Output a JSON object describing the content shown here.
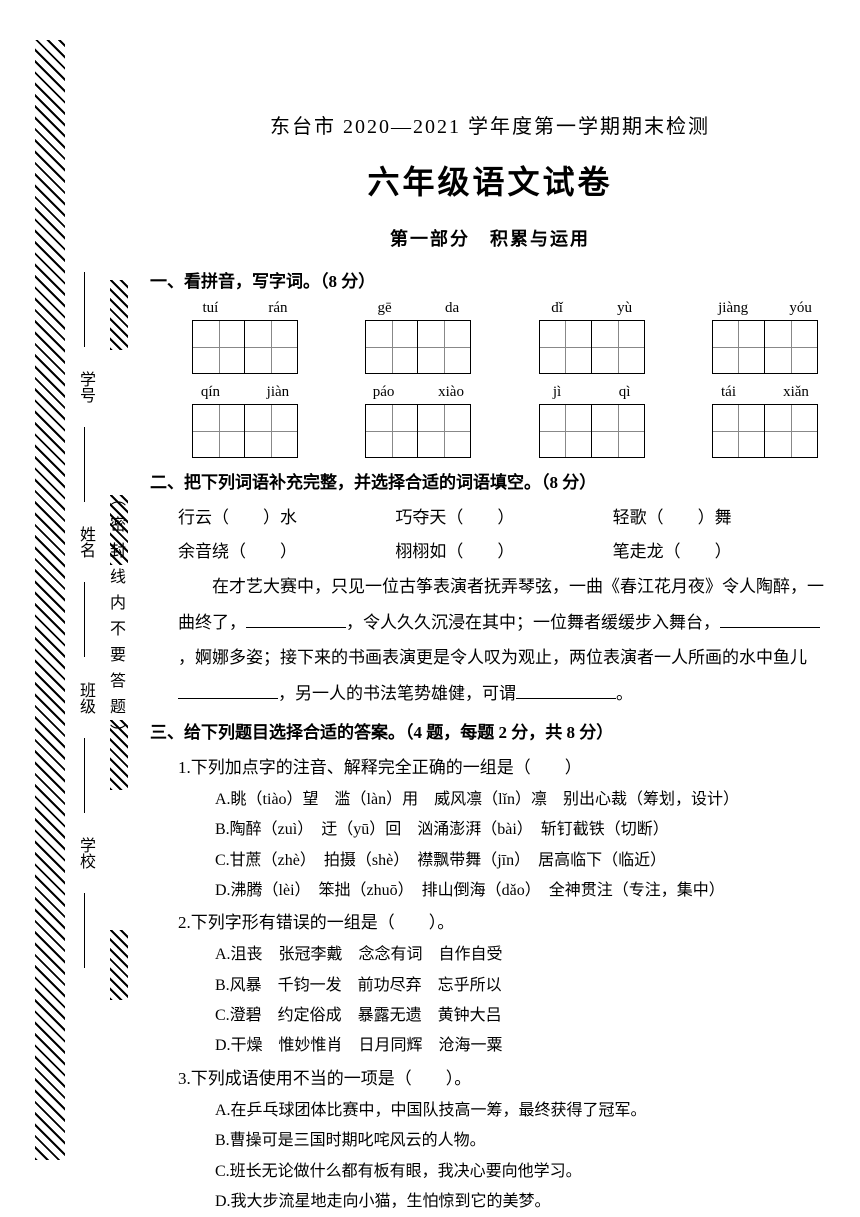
{
  "header": "东台市 2020—2021 学年度第一学期期末检测",
  "title": "六年级语文试卷",
  "section": "第一部分　积累与运用",
  "binding": {
    "fields": [
      "学号",
      "姓名",
      "班级",
      "学校"
    ],
    "seal": "（密封线内不要答题）"
  },
  "q1": {
    "heading": "一、看拼音，写字词。（8 分）",
    "row1": [
      [
        "tuí",
        "rán"
      ],
      [
        "gē",
        "da"
      ],
      [
        "dǐ",
        "yù"
      ],
      [
        "jiàng",
        "yóu"
      ]
    ],
    "row2": [
      [
        "qín",
        "jiàn"
      ],
      [
        "páo",
        "xiào"
      ],
      [
        "jì",
        "qì"
      ],
      [
        "tái",
        "xiǎn"
      ]
    ]
  },
  "q2": {
    "heading": "二、把下列词语补充完整，并选择合适的词语填空。（8 分）",
    "idioms_r1": [
      "行云（　　）水",
      "巧夺天（　　）",
      "轻歌（　　）舞"
    ],
    "idioms_r2": [
      "余音绕（　　）",
      "栩栩如（　　）",
      "笔走龙（　　）"
    ],
    "para_prefix": "在才艺大赛中，只见一位古筝表演者抚弄琴弦，一曲《春江花月夜》令人陶醉，一曲终了，",
    "para_mid1": "，令人久久沉浸在其中；一位舞者缓缓步入舞台，",
    "para_mid2": "，婀娜多姿；接下来的书画表演更是令人叹为观止，两位表演者一人所画的水中鱼儿",
    "para_mid3": "，另一人的书法笔势雄健，可谓",
    "para_end": "。"
  },
  "q3": {
    "heading": "三、给下列题目选择合适的答案。（4 题，每题 2 分，共 8 分）",
    "sub1": "1.下列加点字的注音、解释完全正确的一组是（　　）",
    "sub1_opts": [
      "A.眺（tiào）望　滥（làn）用　威风凛（lǐn）凛　别出心裁（筹划，设计）",
      "B.陶醉（zuì）　迂（yū）回　汹涌澎湃（bài）　斩钉截铁（切断）",
      "C.甘蔗（zhè）　拍摄（shè）　襟飘带舞（jīn）　居高临下（临近）",
      "D.沸腾（lèi）　笨拙（zhuō）　排山倒海（dǎo）　全神贯注（专注，集中）"
    ],
    "sub2": "2.下列字形有错误的一组是（　　）。",
    "sub2_opts": [
      "A.沮丧　张冠李戴　念念有词　自作自受",
      "B.风暴　千钧一发　前功尽弃　忘乎所以",
      "C.澄碧　约定俗成　暴露无遗　黄钟大吕",
      "D.干燥　惟妙惟肖　日月同辉　沧海一粟"
    ],
    "sub3": "3.下列成语使用不当的一项是（　　）。",
    "sub3_opts": [
      "A.在乒乓球团体比赛中，中国队技高一筹，最终获得了冠军。",
      "B.曹操可是三国时期叱咤风云的人物。",
      "C.班长无论做什么都有板有眼，我决心要向他学习。",
      "D.我大步流星地走向小猫，生怕惊到它的美梦。"
    ]
  }
}
